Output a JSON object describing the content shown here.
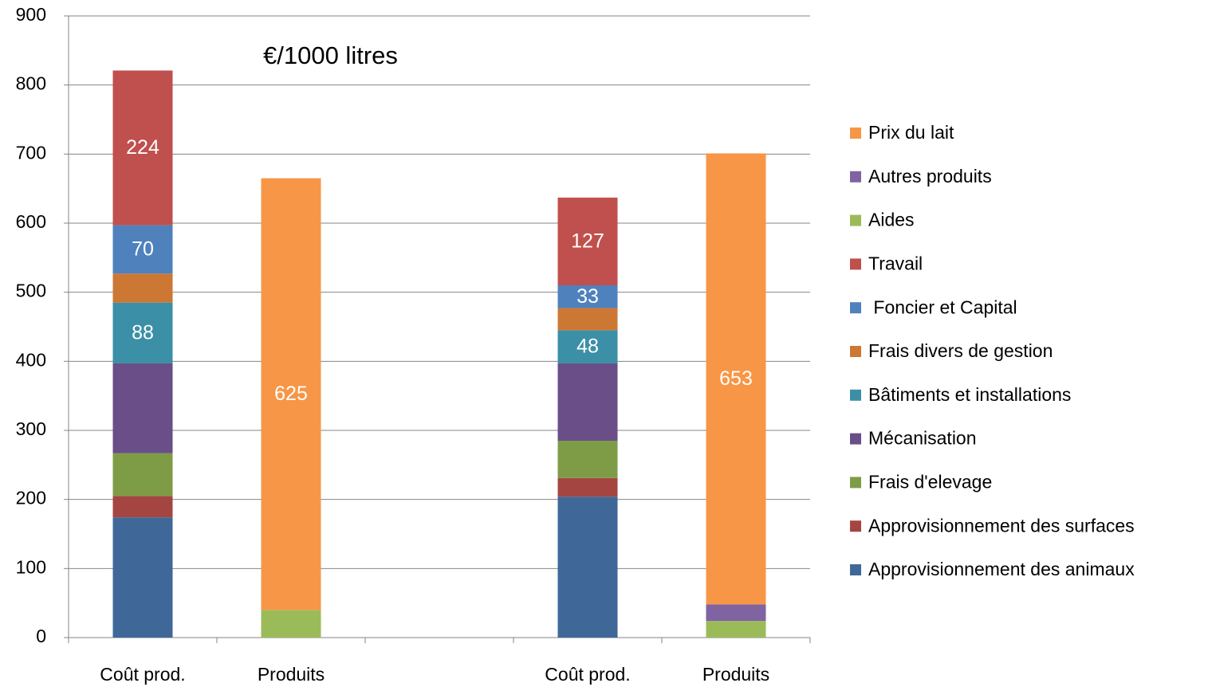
{
  "chart_data": {
    "type": "stacked_bar",
    "annotation": "€/1000 litres",
    "categories": [
      "Coût prod.",
      "Produits",
      null,
      "Coût prod.",
      "Produits"
    ],
    "ylim": [
      0,
      900
    ],
    "yticks": [
      0,
      100,
      200,
      300,
      400,
      500,
      600,
      700,
      800,
      900
    ],
    "grid": true,
    "legend": "right",
    "series": [
      {
        "name": "Approvisionnement des animaux",
        "color": "#3f6899",
        "values": [
          174,
          null,
          null,
          204,
          null
        ]
      },
      {
        "name": "Approvisionnement des surfaces",
        "color": "#a54542",
        "values": [
          31,
          null,
          null,
          27,
          null
        ]
      },
      {
        "name": "Frais d'elevage",
        "color": "#7e9c46",
        "values": [
          62,
          null,
          null,
          54,
          null
        ]
      },
      {
        "name": "Mécanisation",
        "color": "#694e88",
        "values": [
          130,
          null,
          null,
          112,
          null
        ]
      },
      {
        "name": "Bâtiments et installations",
        "color": "#3b8fa6",
        "values": [
          88,
          null,
          null,
          48,
          null
        ],
        "data_labels": true
      },
      {
        "name": "Frais divers de gestion",
        "color": "#cc7734",
        "values": [
          42,
          null,
          null,
          32,
          null
        ]
      },
      {
        "name": " Foncier et Capital",
        "color": "#4f81bd",
        "values": [
          70,
          null,
          null,
          33,
          null
        ],
        "data_labels": true
      },
      {
        "name": "Travail",
        "color": "#c0504d",
        "values": [
          224,
          null,
          null,
          127,
          null
        ],
        "data_labels": true
      },
      {
        "name": "Aides",
        "color": "#9bbb59",
        "values": [
          null,
          40,
          null,
          null,
          24
        ]
      },
      {
        "name": "Autres produits",
        "color": "#8064a2",
        "values": [
          null,
          0,
          null,
          null,
          24
        ]
      },
      {
        "name": "Prix du lait",
        "color": "#f79646",
        "values": [
          null,
          625,
          null,
          null,
          653
        ],
        "data_labels": true
      }
    ]
  }
}
